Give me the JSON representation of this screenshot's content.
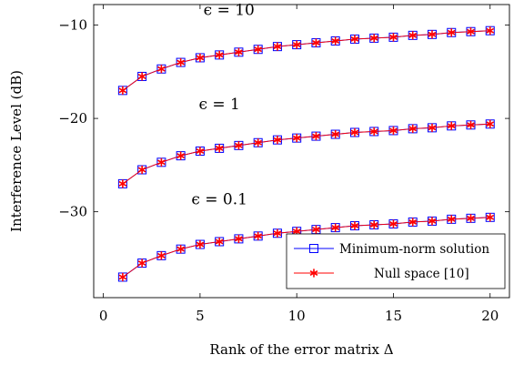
{
  "chart_data": {
    "type": "line",
    "title": "",
    "xlabel": "Rank of the error matrix Δ",
    "ylabel": "Interference Level (dB)",
    "xlim": [
      -0.5,
      21
    ],
    "ylim": [
      -39.2,
      -7.8
    ],
    "xticks": [
      0,
      5,
      10,
      15,
      20
    ],
    "yticks": [
      -30,
      -20,
      -10
    ],
    "x": [
      1,
      2,
      3,
      4,
      5,
      6,
      7,
      8,
      9,
      10,
      11,
      12,
      13,
      14,
      15,
      16,
      17,
      18,
      19,
      20
    ],
    "grid": false,
    "legend_position": "bottom-right",
    "series": [
      {
        "name": "Minimum-norm solution",
        "group": "ϵ = 10",
        "color": "#0000ff",
        "marker": "square",
        "values": [
          -17.0,
          -15.5,
          -14.7,
          -14.0,
          -13.5,
          -13.2,
          -12.9,
          -12.6,
          -12.3,
          -12.1,
          -11.9,
          -11.7,
          -11.5,
          -11.4,
          -11.3,
          -11.1,
          -11.0,
          -10.8,
          -10.7,
          -10.6
        ]
      },
      {
        "name": "Null space [10]",
        "group": "ϵ = 10",
        "color": "#ff0000",
        "marker": "asterisk",
        "values": [
          -17.0,
          -15.5,
          -14.7,
          -14.0,
          -13.5,
          -13.2,
          -12.9,
          -12.6,
          -12.3,
          -12.1,
          -11.9,
          -11.7,
          -11.5,
          -11.4,
          -11.3,
          -11.1,
          -11.0,
          -10.8,
          -10.7,
          -10.6
        ]
      },
      {
        "name": "Minimum-norm solution",
        "group": "ϵ = 1",
        "color": "#0000ff",
        "marker": "square",
        "values": [
          -27.0,
          -25.5,
          -24.7,
          -24.0,
          -23.5,
          -23.2,
          -22.9,
          -22.6,
          -22.3,
          -22.1,
          -21.9,
          -21.7,
          -21.5,
          -21.4,
          -21.3,
          -21.1,
          -21.0,
          -20.8,
          -20.7,
          -20.6
        ]
      },
      {
        "name": "Null space [10]",
        "group": "ϵ = 1",
        "color": "#ff0000",
        "marker": "asterisk",
        "values": [
          -27.0,
          -25.5,
          -24.7,
          -24.0,
          -23.5,
          -23.2,
          -22.9,
          -22.6,
          -22.3,
          -22.1,
          -21.9,
          -21.7,
          -21.5,
          -21.4,
          -21.3,
          -21.1,
          -21.0,
          -20.8,
          -20.7,
          -20.6
        ]
      },
      {
        "name": "Minimum-norm solution",
        "group": "ϵ = 0.1",
        "color": "#0000ff",
        "marker": "square",
        "values": [
          -37.0,
          -35.5,
          -34.7,
          -34.0,
          -33.5,
          -33.2,
          -32.9,
          -32.6,
          -32.3,
          -32.1,
          -31.9,
          -31.7,
          -31.5,
          -31.4,
          -31.3,
          -31.1,
          -31.0,
          -30.8,
          -30.7,
          -30.6
        ]
      },
      {
        "name": "Null space [10]",
        "group": "ϵ = 0.1",
        "color": "#ff0000",
        "marker": "asterisk",
        "values": [
          -37.0,
          -35.5,
          -34.7,
          -34.0,
          -33.5,
          -33.2,
          -32.9,
          -32.6,
          -32.3,
          -32.1,
          -31.9,
          -31.7,
          -31.5,
          -31.4,
          -31.3,
          -31.1,
          -31.0,
          -30.8,
          -30.7,
          -30.6
        ]
      }
    ],
    "annotations": [
      {
        "text": "ϵ = 10",
        "x": 6.5,
        "y": -8.9
      },
      {
        "text": "ϵ = 1",
        "x": 6.0,
        "y": -19.0
      },
      {
        "text": "ϵ = 0.1",
        "x": 6.0,
        "y": -29.2
      }
    ],
    "legend": [
      {
        "label": "Minimum-norm solution",
        "color": "#0000ff",
        "marker": "square"
      },
      {
        "label": "Null space [10]",
        "color": "#ff0000",
        "marker": "asterisk"
      }
    ]
  }
}
